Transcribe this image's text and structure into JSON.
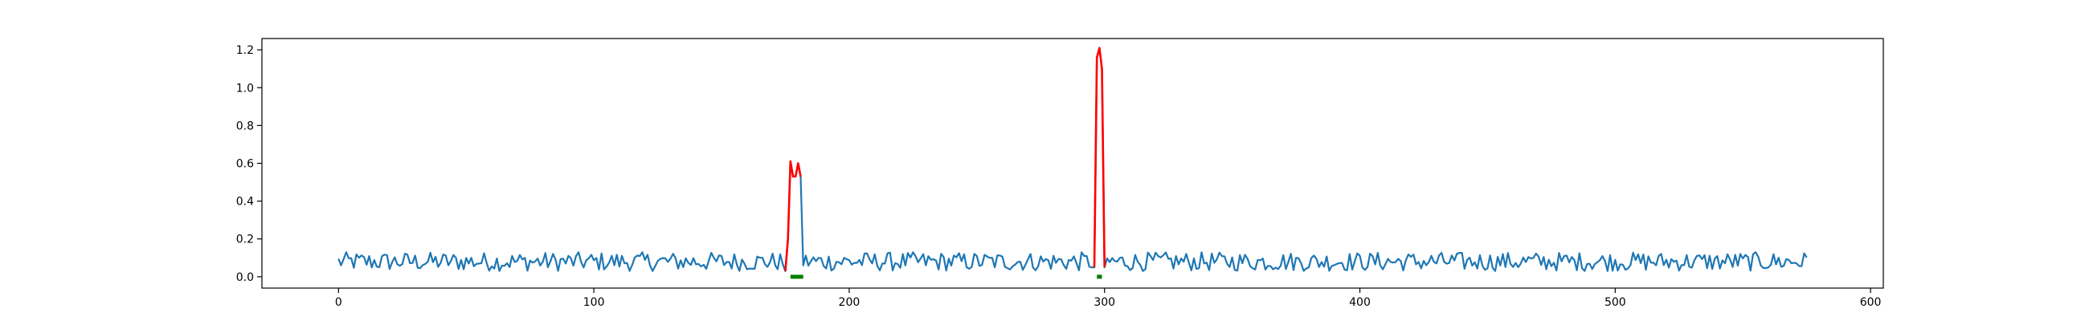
{
  "chart_data": {
    "type": "line",
    "title": "",
    "xlabel": "",
    "ylabel": "",
    "xlim": [
      -30,
      605
    ],
    "ylim": [
      -0.06,
      1.26
    ],
    "grid": false,
    "legend": "none",
    "xticks": [
      0,
      100,
      200,
      300,
      400,
      500,
      600
    ],
    "yticks": [
      0.0,
      0.2,
      0.4,
      0.6,
      0.8,
      1.0,
      1.2
    ],
    "series": [
      {
        "role": "signal",
        "color": "#1f77b4",
        "x_start": 0,
        "x_end": 575,
        "baseline_mean": 0.08,
        "baseline_amplitude": 0.05,
        "point_count": 576
      },
      {
        "role": "anomaly",
        "color": "#ff0000",
        "segments": [
          {
            "x": [
              175,
              176,
              177,
              178,
              179,
              180,
              181
            ],
            "y": [
              0.03,
              0.2,
              0.61,
              0.53,
              0.53,
              0.6,
              0.53
            ]
          },
          {
            "x": [
              296,
              297,
              298,
              299,
              300
            ],
            "y": [
              0.05,
              1.16,
              1.21,
              1.1,
              0.05
            ]
          }
        ]
      },
      {
        "role": "marker",
        "color": "#008000",
        "segments": [
          {
            "x": [
              177,
              182
            ],
            "y": [
              0.0,
              0.0
            ]
          },
          {
            "x": [
              297,
              299
            ],
            "y": [
              0.0,
              0.0
            ]
          }
        ]
      }
    ],
    "xtick_labels": [
      "0",
      "100",
      "200",
      "300",
      "400",
      "500",
      "600"
    ],
    "ytick_labels": [
      "0.0",
      "0.2",
      "0.4",
      "0.6",
      "0.8",
      "1.0",
      "1.2"
    ]
  }
}
